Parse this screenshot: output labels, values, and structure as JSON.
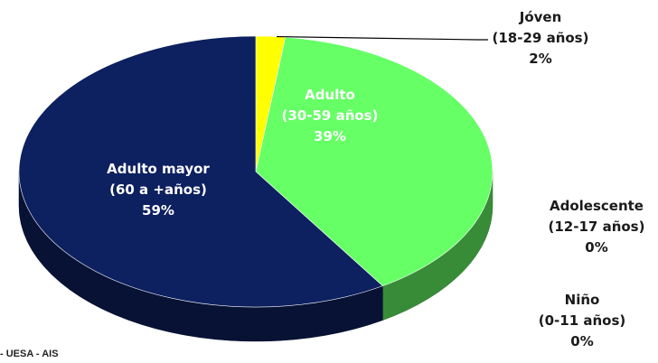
{
  "source_note": "- UESA - AIS",
  "chart_data": {
    "type": "pie",
    "style": "3d",
    "legend": "none",
    "slices": [
      {
        "name": "Jóven",
        "range": "(18-29 años)",
        "value": 2,
        "pct_label": "2%",
        "color": "#ffff00",
        "label_position": "outside"
      },
      {
        "name": "Adulto",
        "range": "(30-59 años)",
        "value": 39,
        "pct_label": "39%",
        "color": "#66ff66",
        "label_position": "inside"
      },
      {
        "name": "Adolescente",
        "range": "(12-17 años)",
        "value": 0,
        "pct_label": "0%",
        "color": "#ff9933",
        "label_position": "outside"
      },
      {
        "name": "Niño",
        "range": "(0-11 años)",
        "value": 0,
        "pct_label": "0%",
        "color": "#3399ff",
        "label_position": "outside"
      },
      {
        "name": "Adulto mayor",
        "range": "(60 a +años)",
        "value": 59,
        "pct_label": "59%",
        "color": "#0d2060",
        "label_position": "inside"
      }
    ]
  }
}
